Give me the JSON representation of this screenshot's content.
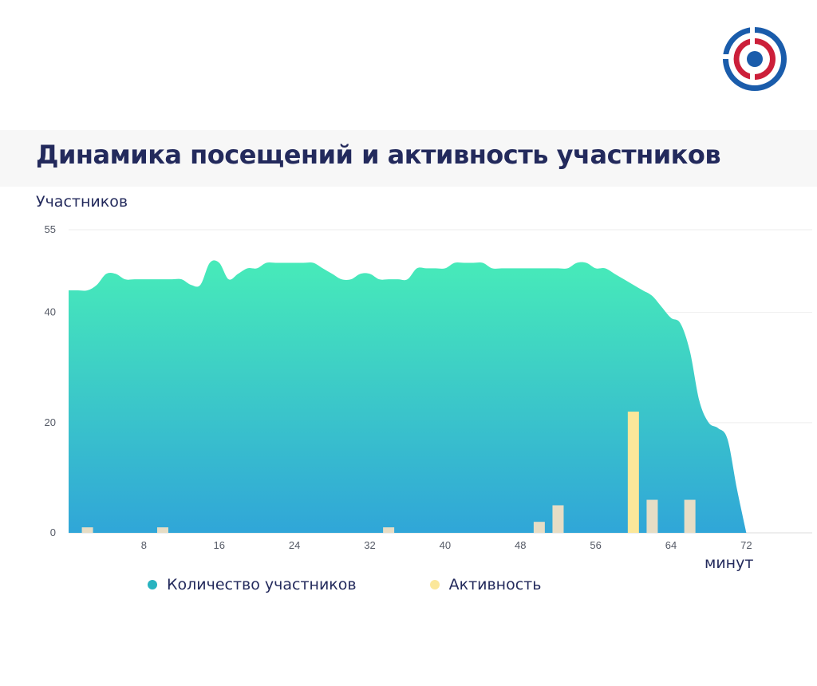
{
  "title": "Динамика посещений и активность участников",
  "logo": {
    "name": "target-logo",
    "colors": {
      "outer": "#1a5cab",
      "inner": "#cc1f3a",
      "center": "#1a5cab"
    }
  },
  "colors": {
    "area_top": "#47ebb9",
    "area_bottom": "#30a6d8",
    "bar": "#e6ddc5",
    "bar_highlight": "#fbe79a",
    "legend_dot_participants": "#28b3c0",
    "legend_dot_activity": "#fbe79a"
  },
  "legend": {
    "participants": "Количество участников",
    "activity": "Активность"
  },
  "chart_data": {
    "type": "area+bar",
    "title": "Динамика посещений и активность участников",
    "ylabel": "Участников",
    "xlabel": "минут",
    "ylim": [
      0,
      55
    ],
    "xlim": [
      0,
      79
    ],
    "y_ticks": [
      0,
      20,
      40,
      55
    ],
    "x_ticks": [
      8,
      16,
      24,
      32,
      40,
      48,
      56,
      64,
      72
    ],
    "grid": true,
    "legend_position": "bottom",
    "series": [
      {
        "name": "Количество участников",
        "type": "area",
        "x": [
          0,
          1,
          2,
          3,
          4,
          5,
          6,
          7,
          8,
          9,
          10,
          11,
          12,
          13,
          14,
          15,
          16,
          17,
          18,
          19,
          20,
          21,
          22,
          23,
          24,
          25,
          26,
          27,
          28,
          29,
          30,
          31,
          32,
          33,
          34,
          35,
          36,
          37,
          38,
          39,
          40,
          41,
          42,
          43,
          44,
          45,
          46,
          47,
          48,
          49,
          50,
          51,
          52,
          53,
          54,
          55,
          56,
          57,
          58,
          59,
          60,
          61,
          62,
          63,
          64,
          65,
          66,
          67,
          68,
          69,
          70,
          71,
          72
        ],
        "values": [
          44,
          44,
          44,
          45,
          47,
          47,
          46,
          46,
          46,
          46,
          46,
          46,
          46,
          45,
          45,
          49,
          49,
          46,
          47,
          48,
          48,
          49,
          49,
          49,
          49,
          49,
          49,
          48,
          47,
          46,
          46,
          47,
          47,
          46,
          46,
          46,
          46,
          48,
          48,
          48,
          48,
          49,
          49,
          49,
          49,
          48,
          48,
          48,
          48,
          48,
          48,
          48,
          48,
          48,
          49,
          49,
          48,
          48,
          47,
          46,
          45,
          44,
          43,
          41,
          39,
          38,
          33,
          24,
          20,
          19,
          17,
          8,
          0
        ]
      },
      {
        "name": "Активность",
        "type": "bar",
        "x": [
          2,
          10,
          34,
          50,
          52,
          60,
          62,
          66
        ],
        "values": [
          1,
          1,
          1,
          2,
          5,
          22,
          6,
          6
        ]
      }
    ]
  }
}
